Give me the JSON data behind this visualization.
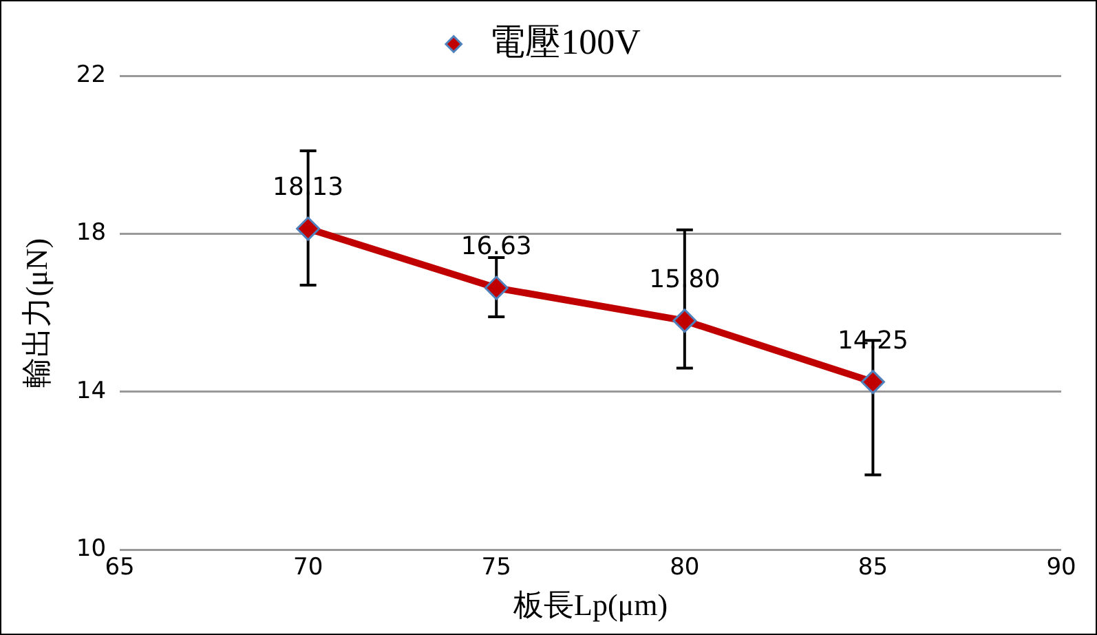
{
  "chart_data": {
    "type": "line",
    "xlabel": "板長Lp(μm)",
    "ylabel": "輸出力(μN)",
    "x": [
      70,
      75,
      80,
      85
    ],
    "series": [
      {
        "name": "電壓100V",
        "color": "#c00000",
        "values": [
          18.13,
          16.63,
          15.8,
          14.25
        ],
        "value_labels": [
          "18.13",
          "16.63",
          "15.80",
          "14.25"
        ],
        "errors": [
          [
            16.7,
            20.1
          ],
          [
            15.9,
            17.4
          ],
          [
            14.6,
            18.1
          ],
          [
            11.9,
            15.3
          ]
        ]
      }
    ],
    "xlim": [
      65,
      90
    ],
    "xticks": [
      65,
      70,
      75,
      80,
      85,
      90
    ],
    "ylim": [
      10,
      22
    ],
    "yticks": [
      10,
      14,
      18,
      22
    ],
    "grid": "y",
    "legend": "top",
    "marker": "diamond",
    "line_style": "solid"
  }
}
